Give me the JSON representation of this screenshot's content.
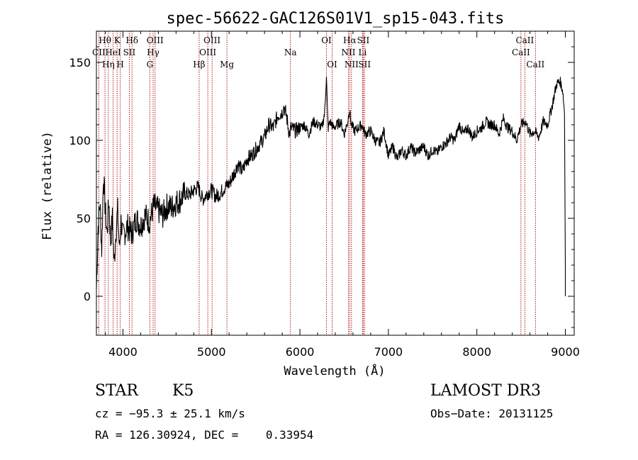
{
  "chart_data": {
    "type": "line",
    "title": "spec-56622-GAC126S01V1_sp15-043.fits",
    "xlabel": "Wavelength (Å)",
    "ylabel": "Flux (relative)",
    "xlim": [
      3700,
      9100
    ],
    "ylim": [
      -25,
      170
    ],
    "x_ticks": [
      "4000",
      "5000",
      "6000",
      "7000",
      "8000",
      "9000"
    ],
    "x_tick_values": [
      4000,
      5000,
      6000,
      7000,
      8000,
      9000
    ],
    "y_ticks": [
      "0",
      "50",
      "100",
      "150"
    ],
    "y_tick_values": [
      0,
      50,
      100,
      150
    ],
    "series": [
      {
        "name": "flux",
        "x": [
          3700,
          3720,
          3740,
          3760,
          3780,
          3800,
          3820,
          3840,
          3860,
          3880,
          3900,
          3920,
          3940,
          3960,
          3980,
          4000,
          4050,
          4100,
          4150,
          4200,
          4250,
          4300,
          4350,
          4400,
          4450,
          4500,
          4550,
          4600,
          4650,
          4700,
          4750,
          4800,
          4850,
          4900,
          4950,
          5000,
          5050,
          5100,
          5150,
          5200,
          5250,
          5300,
          5350,
          5400,
          5450,
          5500,
          5550,
          5600,
          5650,
          5700,
          5750,
          5800,
          5820,
          5850,
          5880,
          5900,
          5950,
          6000,
          6050,
          6100,
          6150,
          6200,
          6250,
          6280,
          6300,
          6310,
          6320,
          6340,
          6380,
          6420,
          6460,
          6500,
          6540,
          6560,
          6580,
          6620,
          6660,
          6700,
          6740,
          6800,
          6850,
          6900,
          6950,
          7000,
          7050,
          7100,
          7150,
          7200,
          7250,
          7300,
          7350,
          7400,
          7450,
          7500,
          7550,
          7600,
          7650,
          7700,
          7750,
          7800,
          7850,
          7900,
          7950,
          8000,
          8050,
          8100,
          8150,
          8200,
          8250,
          8300,
          8350,
          8400,
          8450,
          8500,
          8550,
          8600,
          8650,
          8700,
          8750,
          8800,
          8850,
          8900,
          8940,
          8970,
          8990,
          9000
        ],
        "values": [
          5,
          45,
          60,
          30,
          78,
          55,
          40,
          62,
          35,
          50,
          20,
          42,
          55,
          30,
          48,
          38,
          45,
          40,
          50,
          45,
          52,
          48,
          58,
          55,
          52,
          58,
          57,
          60,
          62,
          66,
          65,
          68,
          70,
          62,
          66,
          68,
          64,
          66,
          70,
          72,
          78,
          85,
          80,
          88,
          90,
          94,
          98,
          102,
          110,
          108,
          116,
          118,
          122,
          115,
          104,
          108,
          106,
          108,
          110,
          104,
          112,
          110,
          108,
          118,
          142,
          120,
          108,
          112,
          108,
          110,
          112,
          104,
          112,
          120,
          110,
          106,
          108,
          110,
          104,
          106,
          100,
          98,
          106,
          90,
          96,
          88,
          94,
          90,
          96,
          92,
          94,
          96,
          90,
          94,
          92,
          96,
          98,
          102,
          100,
          110,
          104,
          108,
          102,
          106,
          108,
          112,
          110,
          110,
          104,
          114,
          108,
          106,
          100,
          110,
          112,
          104,
          106,
          102,
          112,
          110,
          122,
          136,
          138,
          132,
          118,
          20
        ]
      }
    ],
    "spectral_lines": [
      {
        "label": "CII",
        "wavelength": 3727,
        "row": 2
      },
      {
        "label": "Hθ",
        "wavelength": 3797,
        "row": 1
      },
      {
        "label": "Hη",
        "wavelength": 3835,
        "row": 3
      },
      {
        "label": "HeI",
        "wavelength": 3889,
        "row": 2
      },
      {
        "label": "K",
        "wavelength": 3934,
        "row": 1
      },
      {
        "label": "H",
        "wavelength": 3969,
        "row": 3
      },
      {
        "label": "SII",
        "wavelength": 4072,
        "row": 2
      },
      {
        "label": "Hδ",
        "wavelength": 4102,
        "row": 1
      },
      {
        "label": "G",
        "wavelength": 4304,
        "row": 3
      },
      {
        "label": "Hγ",
        "wavelength": 4341,
        "row": 2
      },
      {
        "label": "OIII",
        "wavelength": 4363,
        "row": 1
      },
      {
        "label": "Hβ",
        "wavelength": 4861,
        "row": 3
      },
      {
        "label": "OIII",
        "wavelength": 4959,
        "row": 2
      },
      {
        "label": "OIII",
        "wavelength": 5007,
        "row": 1
      },
      {
        "label": "Mg",
        "wavelength": 5175,
        "row": 3
      },
      {
        "label": "Na",
        "wavelength": 5893,
        "row": 2
      },
      {
        "label": "OI",
        "wavelength": 6300,
        "row": 1
      },
      {
        "label": "OI",
        "wavelength": 6364,
        "row": 3
      },
      {
        "label": "NII",
        "wavelength": 6548,
        "row": 2
      },
      {
        "label": "Hα",
        "wavelength": 6563,
        "row": 1
      },
      {
        "label": "NII",
        "wavelength": 6583,
        "row": 3
      },
      {
        "label": "Li",
        "wavelength": 6708,
        "row": 2
      },
      {
        "label": "SII",
        "wavelength": 6716,
        "row": 1
      },
      {
        "label": "SII",
        "wavelength": 6731,
        "row": 3
      },
      {
        "label": "CaII",
        "wavelength": 8498,
        "row": 2
      },
      {
        "label": "CaII",
        "wavelength": 8542,
        "row": 1
      },
      {
        "label": "CaII",
        "wavelength": 8662,
        "row": 3
      }
    ]
  },
  "info": {
    "class": "STAR",
    "subclass": "K5",
    "survey": "LAMOST DR3",
    "cz": "cz = −95.3 ± 25.1 km/s",
    "obs_date": "Obs−Date: 20131125",
    "coords": "RA = 126.30924, DEC =    0.33954"
  },
  "colors": {
    "line_marker": "#b00000",
    "spectrum": "#000000"
  }
}
